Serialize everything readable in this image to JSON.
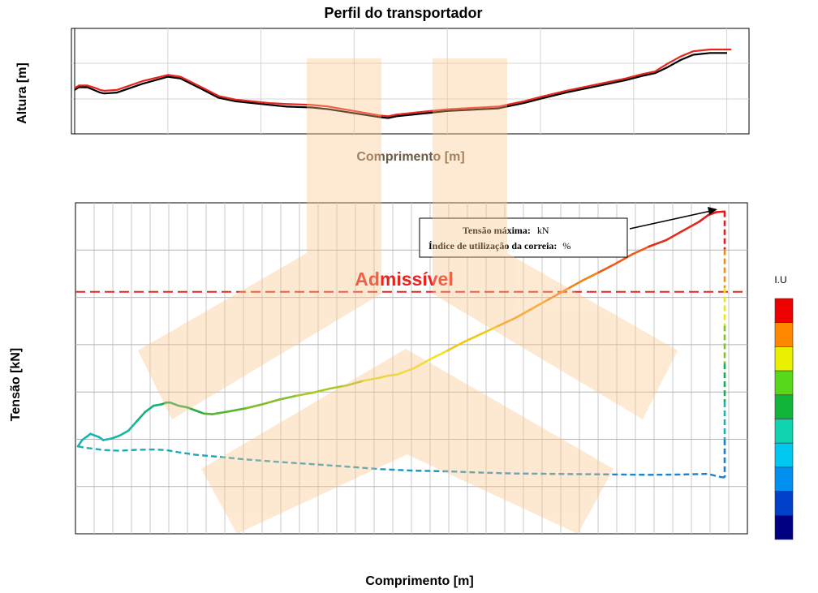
{
  "chart_data": [
    {
      "type": "line",
      "title": "Perfil do transportador",
      "xlabel": "Comprimento [m]",
      "ylabel": "Altura [m]",
      "grid": true,
      "series": [
        {
          "color": "#e8241c",
          "x": [
            0,
            0.5,
            1.5,
            2.5,
            3,
            3.5,
            5,
            6.5,
            8,
            11,
            12.5,
            15,
            17,
            19,
            23,
            25,
            28,
            30,
            36,
            37,
            38,
            40,
            42,
            44,
            46,
            48,
            50,
            53,
            55,
            58,
            63,
            65,
            67,
            68.5,
            70,
            71.5,
            73,
            75,
            76,
            77,
            77.5
          ],
          "y": [
            5.2,
            5.5,
            5.5,
            5.2,
            5,
            4.9,
            5,
            5.5,
            6,
            6.7,
            6.5,
            5.3,
            4.3,
            3.9,
            3.5,
            3.4,
            3.3,
            3.1,
            2.1,
            2,
            2.2,
            2.4,
            2.6,
            2.8,
            2.9,
            3,
            3.1,
            3.7,
            4.2,
            4.9,
            5.9,
            6.3,
            6.8,
            7.1,
            8,
            8.8,
            9.4,
            9.6,
            9.6,
            9.6,
            9.6
          ]
        },
        {
          "color": "#000000",
          "x": [
            0,
            0.5,
            1.5,
            2.5,
            3,
            3.5,
            5,
            6.5,
            8,
            11,
            12.5,
            15,
            17,
            19,
            23,
            25,
            28,
            30,
            36,
            37,
            38,
            40,
            42,
            44,
            46,
            48,
            50,
            53,
            55,
            58,
            63,
            65,
            67,
            68.5,
            70,
            71.5,
            73,
            75,
            76,
            77
          ],
          "y": [
            5,
            5.3,
            5.3,
            4.9,
            4.7,
            4.6,
            4.7,
            5.2,
            5.7,
            6.5,
            6.3,
            5.1,
            4.1,
            3.7,
            3.3,
            3.1,
            3,
            2.8,
            1.9,
            1.8,
            2,
            2.2,
            2.4,
            2.6,
            2.7,
            2.8,
            2.9,
            3.5,
            4,
            4.7,
            5.7,
            6.1,
            6.6,
            6.9,
            7.6,
            8.4,
            9,
            9.2,
            9.2,
            9.2
          ]
        }
      ]
    },
    {
      "type": "line",
      "title": "",
      "xlabel": "Comprimento [m]",
      "ylabel": "Tensão [kN]",
      "grid": true,
      "reference_line": {
        "label": "Admissível",
        "y": 87.5,
        "color": "#e8241c"
      },
      "annotation": {
        "line1_label": "Tensão máxima:",
        "line1_unit": "kN",
        "line2_label": "Índice de utilização da correia:",
        "line2_unit": "%"
      },
      "series": [
        {
          "x": [
            0,
            0.5,
            1,
            1.5,
            2,
            2.5,
            3,
            4,
            5,
            6,
            7,
            8,
            9,
            10,
            10.5,
            11,
            12,
            13,
            14,
            15,
            16,
            18,
            20,
            22,
            24,
            26,
            28,
            30,
            32,
            34,
            36,
            37,
            38,
            40,
            42,
            44,
            46,
            48,
            50,
            52,
            54,
            56,
            58,
            60,
            62,
            64,
            66,
            68,
            70,
            72,
            74,
            75,
            76,
            77
          ],
          "y": [
            38,
            40,
            41,
            42,
            41.5,
            41,
            40,
            40.5,
            41.5,
            43,
            46,
            49,
            51,
            51.5,
            52,
            52,
            51,
            50.5,
            49.5,
            48.5,
            48.3,
            49.2,
            50.2,
            51.5,
            53,
            54.2,
            55.2,
            56.5,
            57.5,
            59,
            60,
            60.7,
            61,
            63,
            66,
            68.7,
            71.5,
            74,
            76.5,
            79,
            82,
            85,
            88,
            91,
            93.7,
            96.5,
            99.5,
            102,
            104,
            107,
            110,
            112,
            113,
            113.2
          ],
          "colors": [
            "#1ab2b2",
            "#1ab2b2",
            "#19b59e",
            "#16b278",
            "#18ac52",
            "#2aad3a",
            "#55b52f",
            "#80be2a",
            "#aac826",
            "#dde61e",
            "#f0e61a",
            "#f0c816",
            "#f4a014",
            "#f2841a",
            "#ef5a1c",
            "#e62a1c",
            "#e61a1a"
          ]
        },
        {
          "x": [
            0,
            1,
            2,
            3,
            5,
            7,
            9,
            10.5,
            12,
            14,
            17,
            20,
            24,
            28,
            32,
            36,
            40,
            44,
            48,
            52,
            56,
            60,
            64,
            68,
            72,
            75,
            76,
            76.5,
            77
          ],
          "y": [
            38,
            37.5,
            37.2,
            36.8,
            36.6,
            36.9,
            37,
            36.8,
            36.1,
            35.3,
            34.6,
            33.8,
            33,
            32.3,
            31.5,
            30.7,
            30.2,
            30,
            29.6,
            29.3,
            29.2,
            29.1,
            29,
            28.9,
            29,
            29.2,
            28.5,
            28.2,
            28
          ]
        }
      ],
      "cap_line": {
        "x": 77,
        "y": [
          113.2,
          28
        ]
      }
    }
  ],
  "legend": {
    "title": "I.U",
    "colors": [
      "#ee0000",
      "#ff8800",
      "#e8f000",
      "#58d81a",
      "#10b53a",
      "#10d4b0",
      "#00c8f0",
      "#0090f0",
      "#0040c8",
      "#000080"
    ]
  }
}
